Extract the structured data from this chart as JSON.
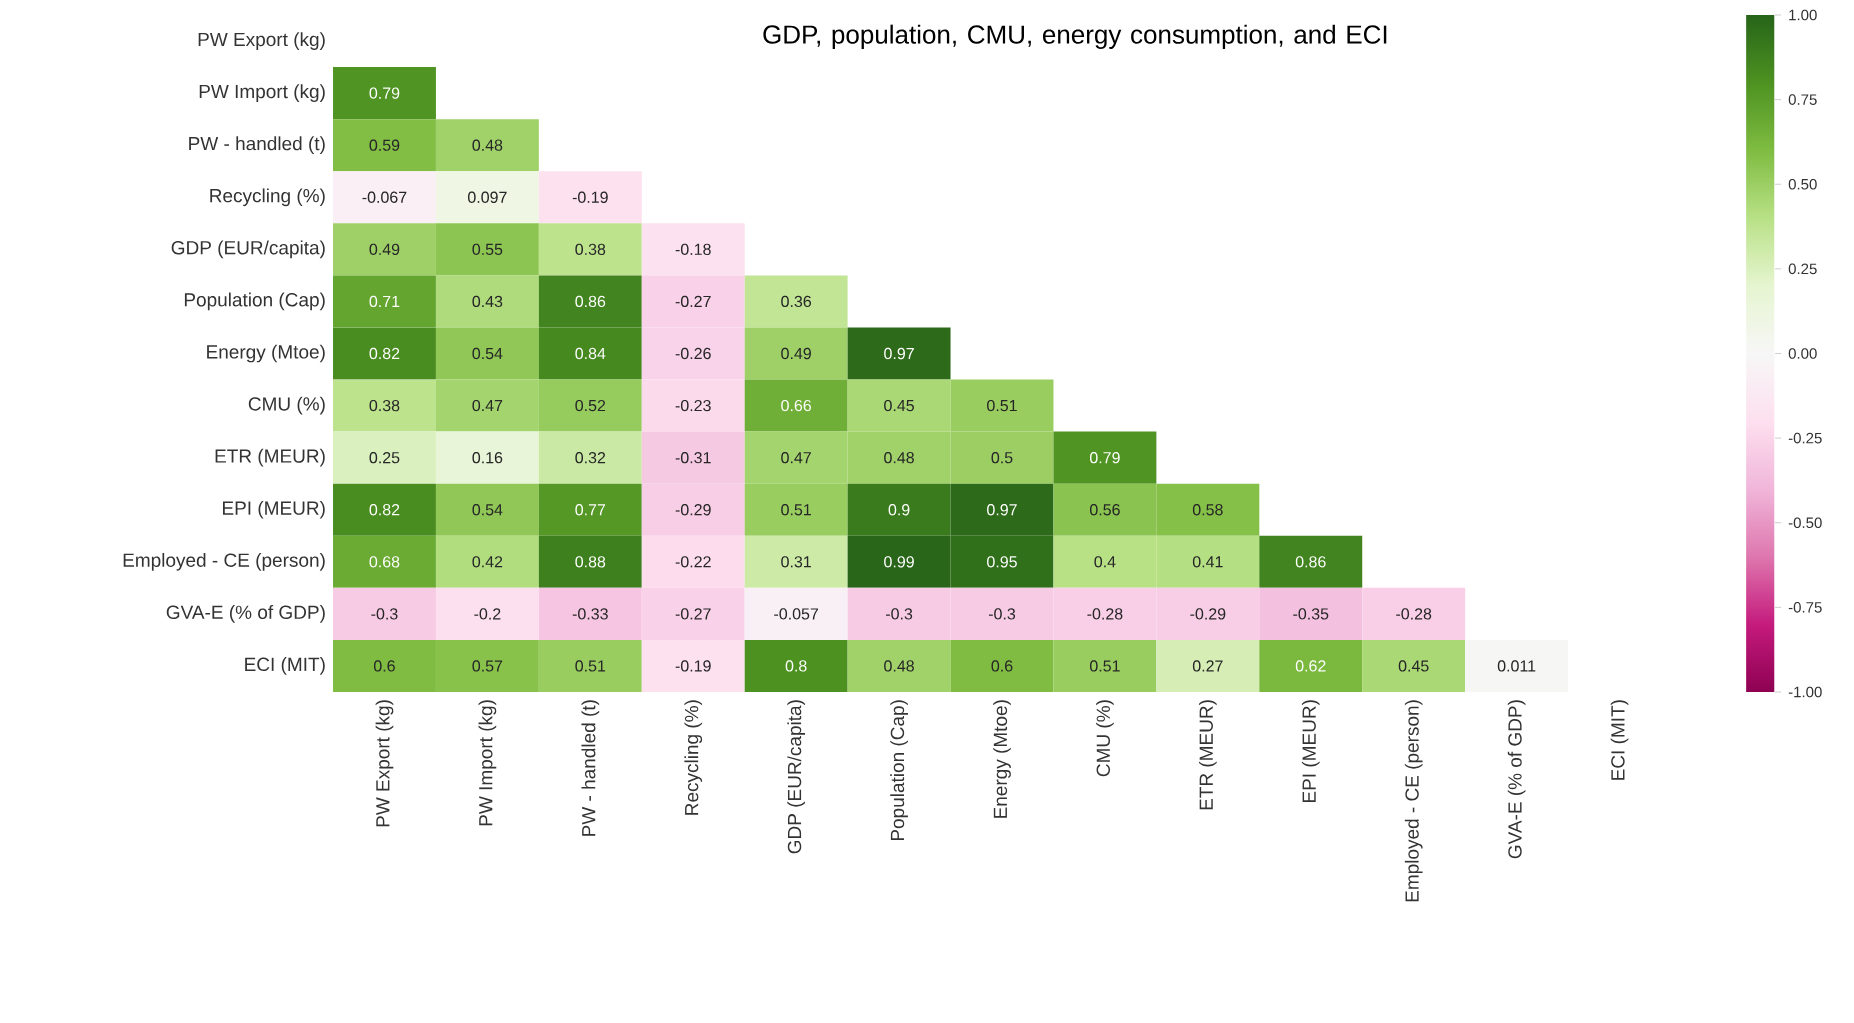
{
  "chart_data": {
    "type": "heatmap",
    "annotations": [
      "GDP, population, CMU, energy consumption, and ECI"
    ],
    "categories": [
      "PW Export (kg)",
      "PW Import (kg)",
      "PW - handled (t)",
      "Recycling (%)",
      "GDP (EUR/capita)",
      "Population (Cap)",
      "Energy (Mtoe)",
      "CMU (%)",
      "ETR (MEUR)",
      "EPI (MEUR)",
      "Employed - CE (person)",
      "GVA-E (% of GDP)",
      "ECI (MIT)"
    ],
    "y_categories": [
      "PW Export (kg)",
      "PW Import (kg)",
      "PW - handled (t)",
      "Recycling (%)",
      "GDP (EUR/capita)",
      "Population (Cap)",
      "Energy (Mtoe)",
      "CMU (%)",
      "ETR (MEUR)",
      "EPI (MEUR)",
      "Employed - CE (person)",
      "GVA-E (% of GDP)",
      "ECI (MIT)"
    ],
    "cells": [
      [
        null,
        null,
        null,
        null,
        null,
        null,
        null,
        null,
        null,
        null,
        null,
        null,
        null
      ],
      [
        0.79,
        null,
        null,
        null,
        null,
        null,
        null,
        null,
        null,
        null,
        null,
        null,
        null
      ],
      [
        0.59,
        0.48,
        null,
        null,
        null,
        null,
        null,
        null,
        null,
        null,
        null,
        null,
        null
      ],
      [
        -0.067,
        0.097,
        -0.19,
        null,
        null,
        null,
        null,
        null,
        null,
        null,
        null,
        null,
        null
      ],
      [
        0.49,
        0.55,
        0.38,
        -0.18,
        null,
        null,
        null,
        null,
        null,
        null,
        null,
        null,
        null
      ],
      [
        0.71,
        0.43,
        0.86,
        -0.27,
        0.36,
        null,
        null,
        null,
        null,
        null,
        null,
        null,
        null
      ],
      [
        0.82,
        0.54,
        0.84,
        -0.26,
        0.49,
        0.97,
        null,
        null,
        null,
        null,
        null,
        null,
        null
      ],
      [
        0.38,
        0.47,
        0.52,
        -0.23,
        0.66,
        0.45,
        0.51,
        null,
        null,
        null,
        null,
        null,
        null
      ],
      [
        0.25,
        0.16,
        0.32,
        -0.31,
        0.47,
        0.48,
        0.5,
        0.79,
        null,
        null,
        null,
        null,
        null
      ],
      [
        0.82,
        0.54,
        0.77,
        -0.29,
        0.51,
        0.9,
        0.97,
        0.56,
        0.58,
        null,
        null,
        null,
        null
      ],
      [
        0.68,
        0.42,
        0.88,
        -0.22,
        0.31,
        0.99,
        0.95,
        0.4,
        0.41,
        0.86,
        null,
        null,
        null
      ],
      [
        -0.3,
        -0.2,
        -0.33,
        -0.27,
        -0.057,
        -0.3,
        -0.3,
        -0.28,
        -0.29,
        -0.35,
        -0.28,
        null,
        null
      ],
      [
        0.6,
        0.57,
        0.51,
        -0.19,
        0.8,
        0.48,
        0.6,
        0.51,
        0.27,
        0.62,
        0.45,
        0.011,
        null
      ]
    ],
    "data_labels": true,
    "clim": [
      -1,
      1
    ],
    "cticks": [
      {
        "value": -1,
        "label": "-1.00"
      },
      {
        "value": -0.75,
        "label": "-0.75"
      },
      {
        "value": -0.5,
        "label": "-0.50"
      },
      {
        "value": -0.25,
        "label": "-0.25"
      },
      {
        "value": 0,
        "label": "0.00"
      },
      {
        "value": 0.25,
        "label": "0.25"
      },
      {
        "value": 0.5,
        "label": "0.50"
      },
      {
        "value": 0.75,
        "label": "0.75"
      },
      {
        "value": 1,
        "label": "1.00"
      }
    ]
  }
}
